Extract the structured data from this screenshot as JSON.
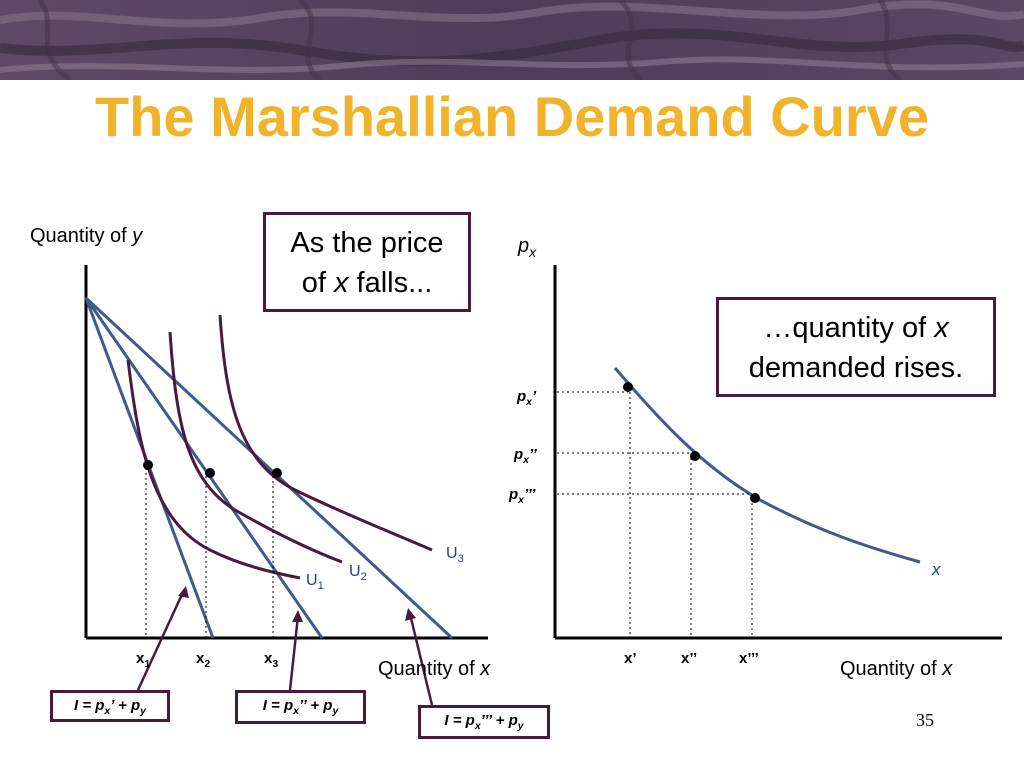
{
  "slide": {
    "title": "The Marshallian Demand Curve",
    "page_number": "35"
  },
  "left_graph": {
    "y_axis_label_prefix": "Quantity of ",
    "y_axis_label_var": "y",
    "x_axis_label_prefix": "Quantity of ",
    "x_axis_label_var": "x",
    "callout_line1": "As the price",
    "callout_line2_prefix": "of ",
    "callout_line2_var": "x",
    "callout_line2_suffix": " falls...",
    "ticks": [
      {
        "base": "x",
        "sub": "1"
      },
      {
        "base": "x",
        "sub": "2"
      },
      {
        "base": "x",
        "sub": "3"
      }
    ],
    "curves": [
      {
        "base": "U",
        "sub": "1"
      },
      {
        "base": "U",
        "sub": "2"
      },
      {
        "base": "U",
        "sub": "3"
      }
    ],
    "budget_labels": [
      {
        "lhs": "I = p",
        "sub": "x",
        "mark": "’",
        "mid": " + p",
        "sub2": "y"
      },
      {
        "lhs": "I = p",
        "sub": "x",
        "mark": "’’",
        "mid": " + p",
        "sub2": "y"
      },
      {
        "lhs": "I = p",
        "sub": "x",
        "mark": "’’’",
        "mid": " + p",
        "sub2": "y"
      }
    ]
  },
  "right_graph": {
    "y_axis_label_base": "p",
    "y_axis_label_sub": "x",
    "x_axis_label_prefix": "Quantity of ",
    "x_axis_label_var": "x",
    "callout_line1_prefix": "…quantity of ",
    "callout_line1_var": "x",
    "callout_line2": "demanded rises.",
    "curve_label": "x",
    "price_labels": [
      {
        "base": "p",
        "sub": "x",
        "mark": "’"
      },
      {
        "base": "p",
        "sub": "x",
        "mark": "’’"
      },
      {
        "base": "p",
        "sub": "x",
        "mark": "’’’"
      }
    ],
    "quantity_labels": [
      "x’",
      "x’’",
      "x’’’"
    ]
  },
  "colors": {
    "title": "#f2b32c",
    "budget_line": "#3f5a8c",
    "indifference_curve": "#4a1a3e",
    "box_border": "#4a1a3e",
    "demand_curve": "#3f5a8c",
    "curve_label": "#2a3b8f"
  }
}
